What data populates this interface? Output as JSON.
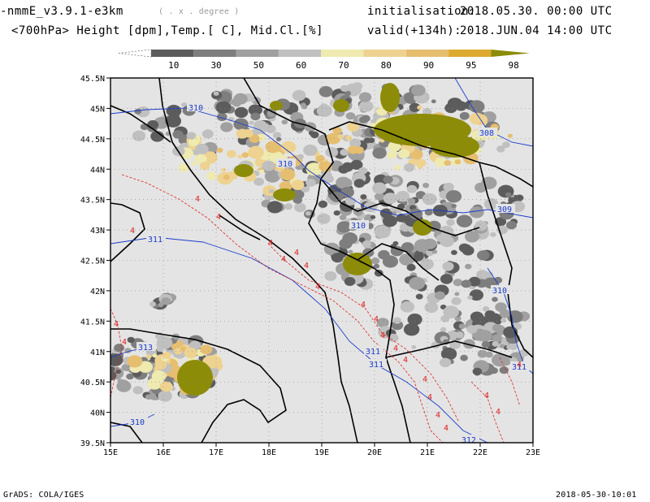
{
  "header": {
    "model": "-nmmE_v3.9.1-e3km",
    "projection": "( . x . degree )",
    "init_label": "initialisation:",
    "init_value": "2018.05.30.   00:00 UTC",
    "subtitle": "<700hPa> Height [dpm],Temp.[ C], Mid.Cl.[%]",
    "valid_label": "valid(+134h):",
    "valid_value": "2018.JUN.04  14:00 UTC"
  },
  "colorbar": {
    "labels": [
      "10",
      "30",
      "50",
      "60",
      "70",
      "80",
      "90",
      "95",
      "98"
    ],
    "colors": [
      "#5c5c5c",
      "#7e7e7e",
      "#a0a0a0",
      "#c0c0c0",
      "#eeeab0",
      "#eed290",
      "#e6be70",
      "#ddaa30",
      "#8c8c08"
    ]
  },
  "map": {
    "lat_labels": [
      "45.5N",
      "45N",
      "44.5N",
      "44N",
      "43.5N",
      "43N",
      "42.5N",
      "42N",
      "41.5N",
      "41N",
      "40.5N",
      "40N",
      "39.5N"
    ],
    "lon_labels": [
      "15E",
      "16E",
      "17E",
      "18E",
      "19E",
      "20E",
      "21E",
      "22E",
      "23E"
    ],
    "height_labels": [
      "310",
      "308",
      "310",
      "309",
      "310",
      "311",
      "311",
      "311",
      "312",
      "313",
      "310",
      "310",
      "311"
    ],
    "temp_labels": [
      "4",
      "4",
      "4",
      "4",
      "4",
      "4",
      "4",
      "4",
      "4",
      "4",
      "4",
      "4",
      "4",
      "4",
      "4",
      "4",
      "4",
      "4",
      "4",
      "4",
      "4",
      "4"
    ],
    "colors": {
      "background": "#e4e4e4",
      "height_contour": "#1a3ccc",
      "temp_contour": "#e02020",
      "coast": "#000000"
    }
  },
  "footer": {
    "left": "GrADS: COLA/IGES",
    "right": "2018-05-30-10:01"
  }
}
